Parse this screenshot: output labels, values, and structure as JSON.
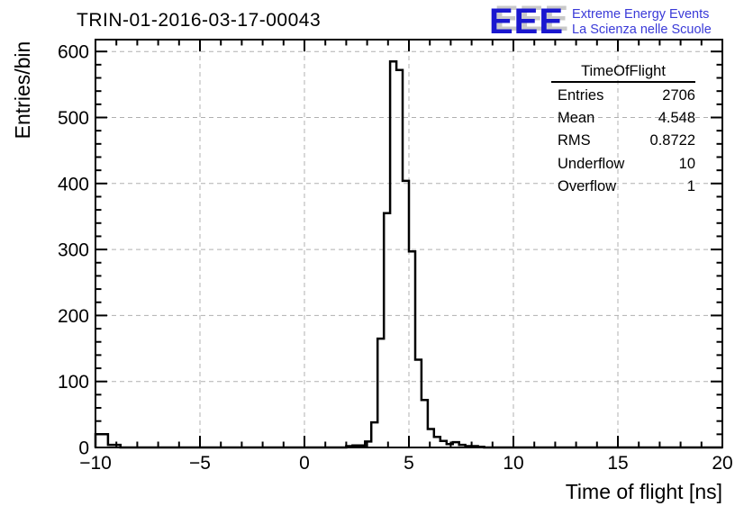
{
  "header": {
    "title": "TRIN-01-2016-03-17-00043"
  },
  "logo": {
    "acronym": "EEE",
    "line1": "Extreme Energy Events",
    "line2": "La Scienza nelle Scuole",
    "color": "#1a17cf",
    "shadow_color": "#c9c9c9",
    "tagline_color": "#3a3ad8"
  },
  "stats_box": {
    "title": "TimeOfFlight",
    "rows": [
      {
        "label": "Entries",
        "value": "2706"
      },
      {
        "label": "Mean",
        "value": "4.548"
      },
      {
        "label": "RMS",
        "value": "0.8722"
      },
      {
        "label": "Underflow",
        "value": "10"
      },
      {
        "label": "Overflow",
        "value": "1"
      }
    ]
  },
  "chart_data": {
    "type": "bar",
    "subtype": "step-histogram",
    "title": "TRIN-01-2016-03-17-00043",
    "xlabel": "Time of flight [ns]",
    "ylabel": "Entries/bin",
    "xlim": [
      -10,
      20
    ],
    "ylim": [
      0,
      618
    ],
    "grid": true,
    "x_major_ticks": [
      -10,
      -5,
      0,
      5,
      10,
      15,
      20
    ],
    "x_tick_labels": [
      "−10",
      "−5",
      "0",
      "5",
      "10",
      "15",
      "20"
    ],
    "x_minor_step": 1,
    "y_major_ticks": [
      0,
      100,
      200,
      300,
      400,
      500,
      600
    ],
    "y_tick_labels": [
      "0",
      "100",
      "200",
      "300",
      "400",
      "500",
      "600"
    ],
    "y_minor_step": 20,
    "bin_width": 0.3,
    "bins_note": "bin left edges with counts; all other bins in [-10,20] are 0",
    "bins": [
      {
        "x": -10.0,
        "count": 20
      },
      {
        "x": -9.7,
        "count": 20
      },
      {
        "x": -9.4,
        "count": 4
      },
      {
        "x": -9.1,
        "count": 4
      },
      {
        "x": 2.0,
        "count": 2
      },
      {
        "x": 2.3,
        "count": 3
      },
      {
        "x": 2.6,
        "count": 3
      },
      {
        "x": 2.9,
        "count": 9
      },
      {
        "x": 3.2,
        "count": 38
      },
      {
        "x": 3.5,
        "count": 165
      },
      {
        "x": 3.8,
        "count": 355
      },
      {
        "x": 4.1,
        "count": 585
      },
      {
        "x": 4.4,
        "count": 572
      },
      {
        "x": 4.7,
        "count": 404
      },
      {
        "x": 5.0,
        "count": 297
      },
      {
        "x": 5.3,
        "count": 133
      },
      {
        "x": 5.6,
        "count": 72
      },
      {
        "x": 5.9,
        "count": 28
      },
      {
        "x": 6.2,
        "count": 16
      },
      {
        "x": 6.5,
        "count": 10
      },
      {
        "x": 6.8,
        "count": 5
      },
      {
        "x": 7.1,
        "count": 8
      },
      {
        "x": 7.4,
        "count": 4
      },
      {
        "x": 7.7,
        "count": 2
      },
      {
        "x": 8.0,
        "count": 2
      },
      {
        "x": 8.3,
        "count": 1
      }
    ],
    "stats": {
      "entries": 2706,
      "mean": 4.548,
      "rms": 0.8722,
      "underflow": 10,
      "overflow": 1
    },
    "colors": {
      "line": "#000000",
      "grid": "#b0b0b0",
      "background": "#ffffff"
    }
  }
}
